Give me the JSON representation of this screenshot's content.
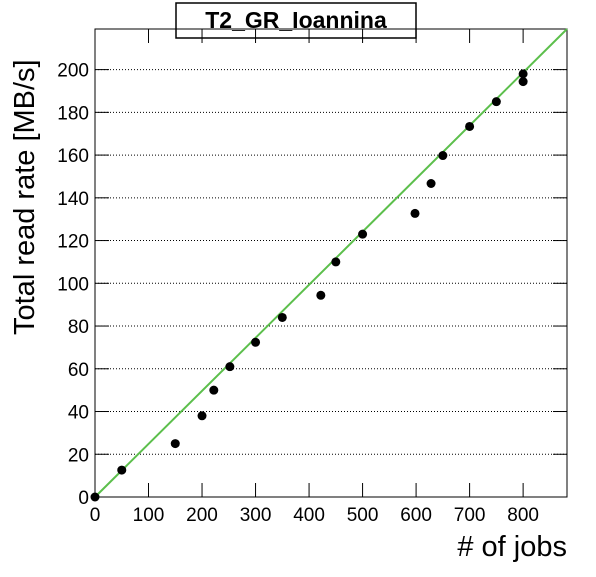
{
  "chart_data": {
    "type": "scatter",
    "title": "T2_GR_Ioannina",
    "xlabel": "# of jobs",
    "ylabel": "Total read rate [MB/s]",
    "xlim": [
      0,
      882
    ],
    "ylim": [
      0,
      219
    ],
    "xticks": [
      0,
      100,
      200,
      300,
      400,
      500,
      600,
      700,
      800
    ],
    "yticks": [
      0,
      20,
      40,
      60,
      80,
      100,
      120,
      140,
      160,
      180,
      200
    ],
    "grid": true,
    "series": [
      {
        "color": "#000000",
        "x": [
          0,
          50,
          150,
          200,
          222,
          252,
          300,
          350,
          422,
          450,
          500,
          598,
          628,
          650,
          700,
          750,
          800,
          800
        ],
        "values": [
          0,
          12.6,
          25,
          38,
          50,
          61,
          72.4,
          84,
          94.4,
          110,
          123,
          132.7,
          146.7,
          159.8,
          173.4,
          185,
          198,
          194.4
        ]
      },
      {
        "type": "line",
        "color": "#5cbf4c",
        "x": [
          0,
          882
        ],
        "values": [
          0,
          219
        ]
      }
    ]
  }
}
